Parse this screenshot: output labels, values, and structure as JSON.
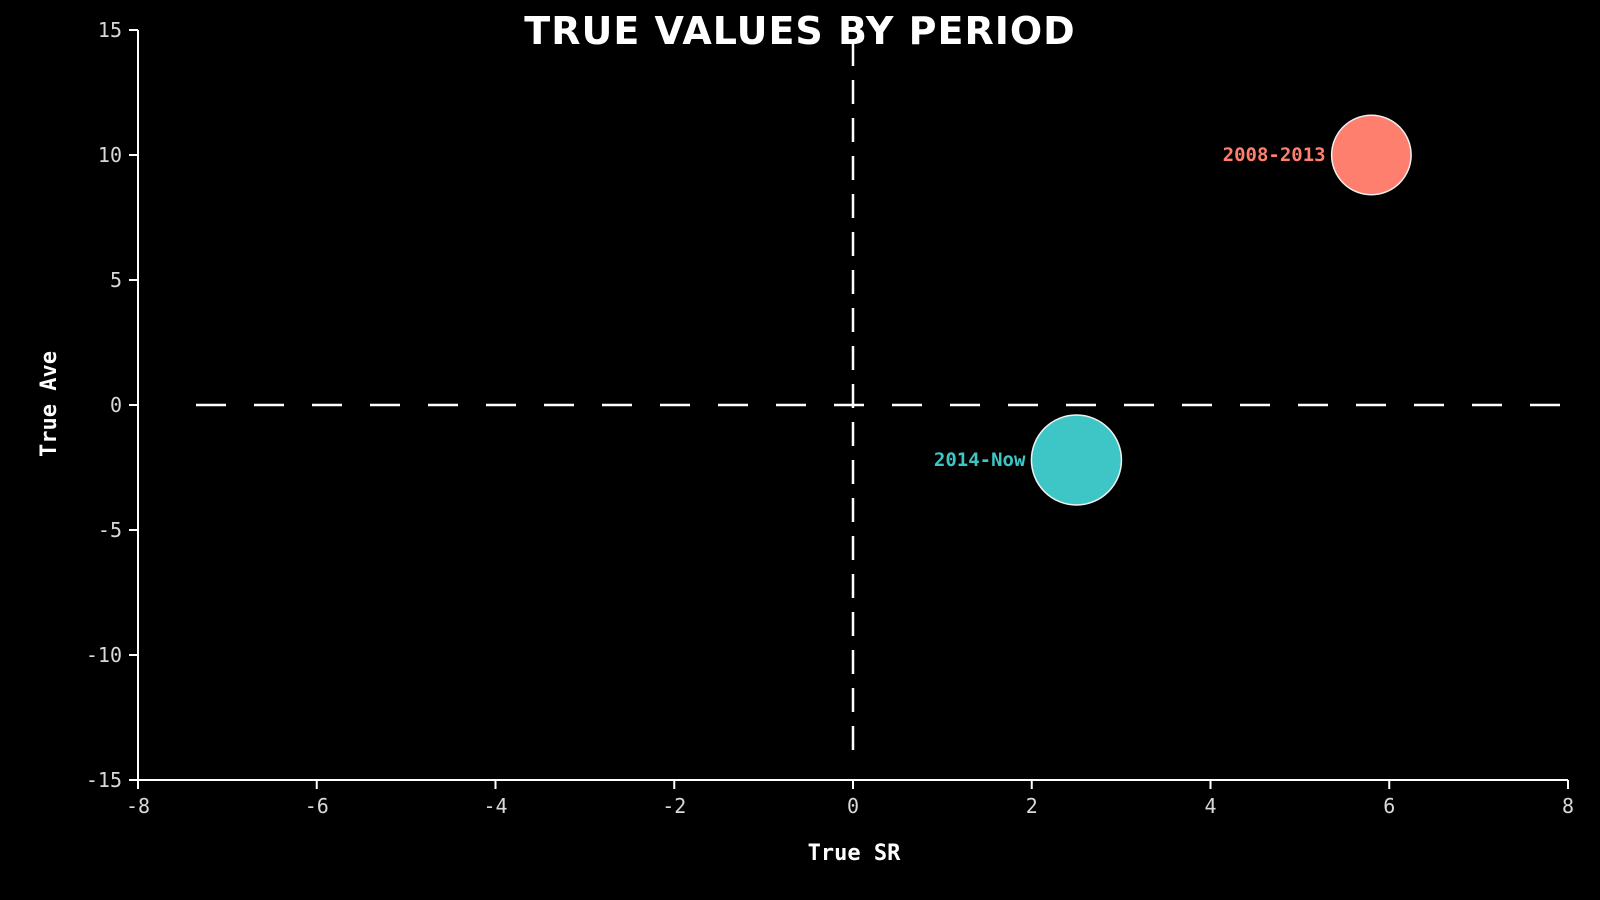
{
  "chart_data": {
    "type": "scatter",
    "title": "TRUE VALUES BY PERIOD",
    "xlabel": "True SR",
    "ylabel": "True Ave",
    "xlim": [
      -8,
      8
    ],
    "ylim": [
      -15,
      15
    ],
    "xticks": [
      -8,
      -6,
      -4,
      -2,
      0,
      2,
      4,
      6,
      8
    ],
    "yticks": [
      15,
      10,
      5,
      0,
      -5,
      -10,
      -15
    ],
    "grid": false,
    "reference_lines": {
      "x": 0,
      "y": 0,
      "style": "dashed"
    },
    "colors": {
      "background": "#000000",
      "axis": "#ffffff",
      "reference": "#ffffff"
    },
    "points": [
      {
        "label": "2008-2013",
        "x": 5.8,
        "y": 10.0,
        "size": 0.78,
        "color": "#ff7f6e"
      },
      {
        "label": "2014-Now",
        "x": 2.5,
        "y": -2.2,
        "size": 1.0,
        "color": "#3ec6c6"
      }
    ]
  }
}
